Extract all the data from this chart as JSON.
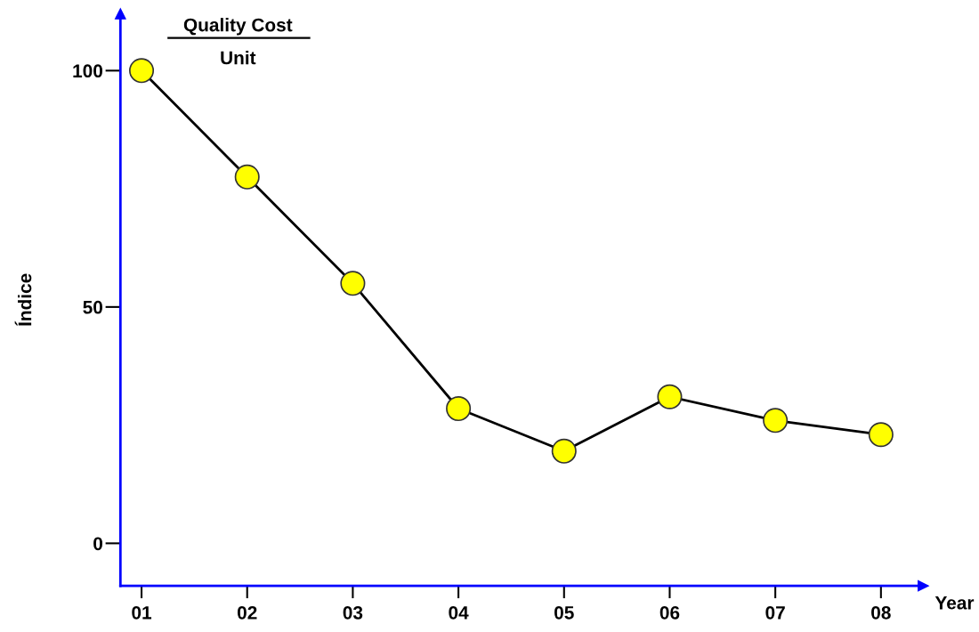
{
  "chart_data": {
    "type": "line",
    "title": "Quality Cost",
    "subtitle": "Unit",
    "xlabel": "Year",
    "ylabel": "Índice",
    "categories": [
      "01",
      "02",
      "03",
      "04",
      "05",
      "06",
      "07",
      "08"
    ],
    "series": [
      {
        "color": "#000000",
        "values": [
          100,
          77.5,
          55,
          28.5,
          19.5,
          31,
          26,
          23
        ]
      }
    ],
    "ylim": [
      -9,
      112
    ],
    "yticks": [
      0,
      50,
      100
    ],
    "marker": "circle",
    "line_style": "solid",
    "grid": false
  }
}
